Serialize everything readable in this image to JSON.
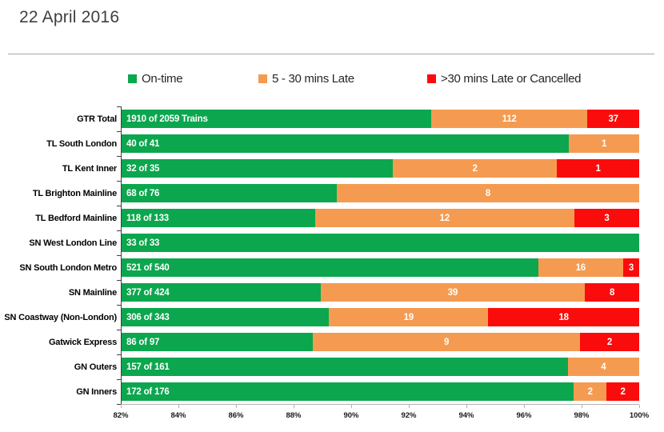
{
  "header": {
    "title": "22 April 2016"
  },
  "chart_data": {
    "type": "bar",
    "orientation": "horizontal-stacked",
    "title": "22 April 2016",
    "xlabel": "",
    "ylabel": "",
    "axis": {
      "min": 82,
      "max": 100,
      "tick_step": 2,
      "unit": "%"
    },
    "tick_labels": [
      "82%",
      "84%",
      "86%",
      "88%",
      "90%",
      "92%",
      "94%",
      "96%",
      "98%",
      "100%"
    ],
    "grid": false,
    "legend_position": "top",
    "legend": [
      {
        "name": "ontime",
        "label": "On-time",
        "color": "#0ca64e"
      },
      {
        "name": "late",
        "label": "5 - 30 mins Late",
        "color": "#f59b51"
      },
      {
        "name": "cancelled",
        "label": ">30 mins Late or Cancelled",
        "color": "#fb0c0c"
      }
    ],
    "categories": [
      "GTR Total",
      "TL South London",
      "TL Kent Inner",
      "TL Brighton Mainline",
      "TL Bedford Mainline",
      "SN West London Line",
      "SN South London Metro",
      "SN Mainline",
      "SN Coastway (Non-London)",
      "Gatwick Express",
      "GN Outers",
      "GN Inners"
    ],
    "rows": [
      {
        "label": "GTR Total",
        "on_time_label": "1910 of 2059 Trains",
        "on_time": 1910,
        "total": 2059,
        "late_5_30": 112,
        "late_30_or_cancelled": 37
      },
      {
        "label": "TL South London",
        "on_time_label": "40 of 41",
        "on_time": 40,
        "total": 41,
        "late_5_30": 1,
        "late_30_or_cancelled": 0
      },
      {
        "label": "TL Kent Inner",
        "on_time_label": "32 of 35",
        "on_time": 32,
        "total": 35,
        "late_5_30": 2,
        "late_30_or_cancelled": 1
      },
      {
        "label": "TL Brighton Mainline",
        "on_time_label": "68 of 76",
        "on_time": 68,
        "total": 76,
        "late_5_30": 8,
        "late_30_or_cancelled": 0
      },
      {
        "label": "TL Bedford Mainline",
        "on_time_label": "118 of 133",
        "on_time": 118,
        "total": 133,
        "late_5_30": 12,
        "late_30_or_cancelled": 3
      },
      {
        "label": "SN West London Line",
        "on_time_label": "33 of 33",
        "on_time": 33,
        "total": 33,
        "late_5_30": 0,
        "late_30_or_cancelled": 0
      },
      {
        "label": "SN South London Metro",
        "on_time_label": "521 of 540",
        "on_time": 521,
        "total": 540,
        "late_5_30": 16,
        "late_30_or_cancelled": 3
      },
      {
        "label": "SN Mainline",
        "on_time_label": "377 of 424",
        "on_time": 377,
        "total": 424,
        "late_5_30": 39,
        "late_30_or_cancelled": 8
      },
      {
        "label": "SN Coastway (Non-London)",
        "on_time_label": "306 of 343",
        "on_time": 306,
        "total": 343,
        "late_5_30": 19,
        "late_30_or_cancelled": 18
      },
      {
        "label": "Gatwick Express",
        "on_time_label": "86 of 97",
        "on_time": 86,
        "total": 97,
        "late_5_30": 9,
        "late_30_or_cancelled": 2
      },
      {
        "label": "GN Outers",
        "on_time_label": "157 of 161",
        "on_time": 157,
        "total": 161,
        "late_5_30": 4,
        "late_30_or_cancelled": 0
      },
      {
        "label": "GN Inners",
        "on_time_label": "172 of 176",
        "on_time": 172,
        "total": 176,
        "late_5_30": 2,
        "late_30_or_cancelled": 2
      }
    ]
  }
}
